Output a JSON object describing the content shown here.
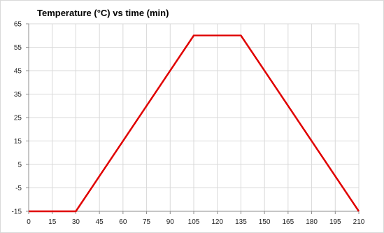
{
  "chart_data": {
    "type": "line",
    "title": "Temperature (°C) vs time (min)",
    "xlabel": "",
    "ylabel": "",
    "x_ticks": [
      0,
      15,
      30,
      45,
      60,
      75,
      90,
      105,
      120,
      135,
      150,
      165,
      180,
      195,
      210
    ],
    "y_ticks": [
      -15,
      -5,
      5,
      15,
      25,
      35,
      45,
      55,
      65
    ],
    "xlim": [
      0,
      210
    ],
    "ylim": [
      -15,
      65
    ],
    "grid": true,
    "legend": "none",
    "series": [
      {
        "color": "#e00000",
        "x": [
          0,
          30,
          105,
          135,
          210
        ],
        "y": [
          -15,
          -15,
          60,
          60,
          -15
        ]
      }
    ]
  }
}
